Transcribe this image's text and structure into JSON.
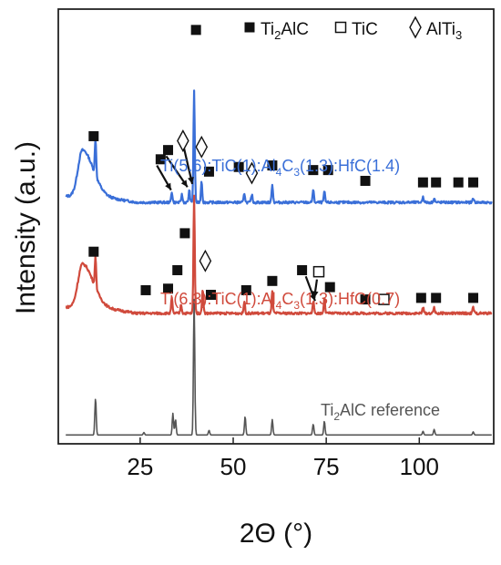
{
  "chart_data": {
    "type": "line",
    "xlabel": "2Θ (°)",
    "ylabel": "Intensity (a.u.)",
    "xlim": [
      3,
      120
    ],
    "x_ticks": [
      25,
      50,
      75,
      100
    ],
    "y_ticks_shown": false,
    "grid": false,
    "legend_position": "top-right",
    "legend": [
      {
        "symbol": "filled-square",
        "label": "Ti",
        "sub": "2",
        "label_tail": "AlC"
      },
      {
        "symbol": "open-square",
        "label": "TiC"
      },
      {
        "symbol": "open-diamond",
        "label": "AlTi",
        "sub": "3"
      }
    ],
    "series": [
      {
        "name_parts": [
          {
            "t": "Ti(5.6):TiC(1):Al"
          },
          {
            "s": "4"
          },
          {
            "t": "C"
          },
          {
            "s": "3"
          },
          {
            "t": "(1.3):HfC(1.4)"
          }
        ],
        "color": "#3a6fd8",
        "baseline": 0.78,
        "broad_hump": {
          "center": 9.5,
          "height": 0.15,
          "width": 2.8
        },
        "peaks": [
          {
            "x": 13.0,
            "h": 0.12
          },
          {
            "x": 33.5,
            "h": 0.035
          },
          {
            "x": 36.2,
            "h": 0.025
          },
          {
            "x": 38.2,
            "h": 0.04
          },
          {
            "x": 39.5,
            "h": 0.36
          },
          {
            "x": 41.5,
            "h": 0.07
          },
          {
            "x": 53.0,
            "h": 0.03
          },
          {
            "x": 55.0,
            "h": 0.025
          },
          {
            "x": 60.5,
            "h": 0.06
          },
          {
            "x": 71.5,
            "h": 0.04
          },
          {
            "x": 74.5,
            "h": 0.035
          },
          {
            "x": 101.0,
            "h": 0.02
          },
          {
            "x": 104.0,
            "h": 0.015
          },
          {
            "x": 114.5,
            "h": 0.015
          }
        ],
        "markers": [
          {
            "x": 12.5,
            "y": 0.975,
            "symbol": "filled-square"
          },
          {
            "x": 30.5,
            "y": 0.9,
            "symbol": "filled-square"
          },
          {
            "x": 32.5,
            "y": 0.93,
            "symbol": "filled-square"
          },
          {
            "x": 36.5,
            "y": 0.96,
            "symbol": "open-diamond"
          },
          {
            "x": 40.0,
            "y": 1.32,
            "symbol": "filled-square"
          },
          {
            "x": 41.5,
            "y": 0.94,
            "symbol": "open-diamond"
          },
          {
            "x": 43.5,
            "y": 0.86,
            "symbol": "filled-square"
          },
          {
            "x": 51.5,
            "y": 0.875,
            "symbol": "filled-square"
          },
          {
            "x": 55.0,
            "y": 0.855,
            "symbol": "open-diamond"
          },
          {
            "x": 60.5,
            "y": 0.88,
            "symbol": "filled-square"
          },
          {
            "x": 71.5,
            "y": 0.865,
            "symbol": "filled-square"
          },
          {
            "x": 75.5,
            "y": 0.865,
            "symbol": "filled-square"
          },
          {
            "x": 85.5,
            "y": 0.83,
            "symbol": "filled-square"
          },
          {
            "x": 101.0,
            "y": 0.825,
            "symbol": "filled-square"
          },
          {
            "x": 104.5,
            "y": 0.825,
            "symbol": "filled-square"
          },
          {
            "x": 110.5,
            "y": 0.825,
            "symbol": "filled-square"
          },
          {
            "x": 114.5,
            "y": 0.825,
            "symbol": "filled-square"
          }
        ],
        "arrows": [
          {
            "from": [
              29.5,
              0.88
            ],
            "to": [
              33.3,
              0.8
            ]
          },
          {
            "from": [
              32.0,
              0.91
            ],
            "to": [
              37.7,
              0.81
            ]
          },
          {
            "from": [
              36.8,
              0.935
            ],
            "to": [
              39.0,
              0.82
            ]
          }
        ]
      },
      {
        "name_parts": [
          {
            "t": "Ti(6.3):TiC(1):Al"
          },
          {
            "s": "4"
          },
          {
            "t": "C"
          },
          {
            "s": "3"
          },
          {
            "t": "(1.3):HfC(0.7)"
          }
        ],
        "color": "#d04a3c",
        "baseline": 0.42,
        "broad_hump": {
          "center": 9.5,
          "height": 0.14,
          "width": 2.8
        },
        "peaks": [
          {
            "x": 13.0,
            "h": 0.1
          },
          {
            "x": 33.5,
            "h": 0.05
          },
          {
            "x": 36.0,
            "h": 0.03
          },
          {
            "x": 39.5,
            "h": 0.38
          },
          {
            "x": 41.8,
            "h": 0.08
          },
          {
            "x": 53.0,
            "h": 0.04
          },
          {
            "x": 60.5,
            "h": 0.07
          },
          {
            "x": 71.5,
            "h": 0.04
          },
          {
            "x": 74.5,
            "h": 0.05
          },
          {
            "x": 101.0,
            "h": 0.02
          },
          {
            "x": 104.0,
            "h": 0.02
          },
          {
            "x": 114.5,
            "h": 0.02
          }
        ],
        "markers": [
          {
            "x": 12.5,
            "y": 0.6,
            "symbol": "filled-square"
          },
          {
            "x": 26.5,
            "y": 0.475,
            "symbol": "filled-square"
          },
          {
            "x": 32.5,
            "y": 0.48,
            "symbol": "filled-square"
          },
          {
            "x": 35.0,
            "y": 0.54,
            "symbol": "filled-square"
          },
          {
            "x": 37.0,
            "y": 0.66,
            "symbol": "filled-square"
          },
          {
            "x": 42.5,
            "y": 0.57,
            "symbol": "open-diamond"
          },
          {
            "x": 44.0,
            "y": 0.46,
            "symbol": "filled-square"
          },
          {
            "x": 53.5,
            "y": 0.475,
            "symbol": "filled-square"
          },
          {
            "x": 60.5,
            "y": 0.505,
            "symbol": "filled-square"
          },
          {
            "x": 68.5,
            "y": 0.54,
            "symbol": "filled-square"
          },
          {
            "x": 73.0,
            "y": 0.535,
            "symbol": "open-square"
          },
          {
            "x": 76.0,
            "y": 0.485,
            "symbol": "filled-square"
          },
          {
            "x": 85.5,
            "y": 0.445,
            "symbol": "filled-square"
          },
          {
            "x": 90.5,
            "y": 0.445,
            "symbol": "open-square"
          },
          {
            "x": 100.5,
            "y": 0.45,
            "symbol": "filled-square"
          },
          {
            "x": 104.5,
            "y": 0.45,
            "symbol": "filled-square"
          },
          {
            "x": 114.5,
            "y": 0.45,
            "symbol": "filled-square"
          }
        ],
        "arrows": [
          {
            "from": [
              69.5,
              0.52
            ],
            "to": [
              72.0,
              0.44
            ]
          },
          {
            "from": [
              72.5,
              0.51
            ],
            "to": [
              71.8,
              0.45
            ]
          }
        ]
      },
      {
        "name_parts": [
          {
            "t": "Ti"
          },
          {
            "s": "2"
          },
          {
            "t": "AlC reference"
          }
        ],
        "color": "#555555",
        "baseline": 0.005,
        "broad_hump": null,
        "peaks": [
          {
            "x": 13.0,
            "h": 0.12
          },
          {
            "x": 26.0,
            "h": 0.008
          },
          {
            "x": 33.8,
            "h": 0.07
          },
          {
            "x": 34.5,
            "h": 0.05
          },
          {
            "x": 39.5,
            "h": 0.44
          },
          {
            "x": 43.5,
            "h": 0.015
          },
          {
            "x": 53.2,
            "h": 0.06
          },
          {
            "x": 60.5,
            "h": 0.05
          },
          {
            "x": 71.5,
            "h": 0.035
          },
          {
            "x": 74.5,
            "h": 0.045
          },
          {
            "x": 101.0,
            "h": 0.012
          },
          {
            "x": 104.0,
            "h": 0.018
          },
          {
            "x": 114.5,
            "h": 0.01
          }
        ],
        "markers": [],
        "arrows": []
      }
    ]
  }
}
